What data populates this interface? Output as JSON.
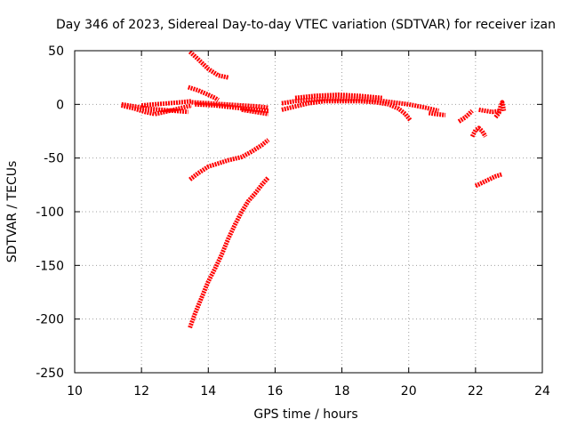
{
  "chart_data": {
    "type": "scatter",
    "title": "Day 346 of 2023, Sidereal Day-to-day VTEC variation (SDTVAR) for receiver izan",
    "xlabel": "GPS time / hours",
    "ylabel": "SDTVAR / TECUs",
    "xlim": [
      10,
      24
    ],
    "ylim": [
      -250,
      50
    ],
    "xticks": [
      "10",
      "12",
      "14",
      "16",
      "18",
      "20",
      "22",
      "24"
    ],
    "yticks": [
      "50",
      "0",
      "-50",
      "-100",
      "-150",
      "-200",
      "-250"
    ],
    "grid": true,
    "marker_color": "#ff0000",
    "series": [
      {
        "points": [
          [
            13.45,
            49
          ],
          [
            13.7,
            42
          ],
          [
            14.0,
            33
          ],
          [
            14.3,
            27
          ],
          [
            14.6,
            25
          ]
        ]
      },
      {
        "points": [
          [
            13.4,
            16
          ],
          [
            13.7,
            13
          ],
          [
            14.0,
            9
          ],
          [
            14.2,
            6
          ],
          [
            14.3,
            4
          ]
        ]
      },
      {
        "points": [
          [
            11.4,
            0
          ],
          [
            11.8,
            -2
          ],
          [
            12.2,
            -4
          ],
          [
            12.6,
            -5
          ],
          [
            13.0,
            -6
          ],
          [
            13.4,
            -7
          ]
        ]
      },
      {
        "points": [
          [
            11.4,
            -1
          ],
          [
            11.8,
            -4
          ],
          [
            12.1,
            -7
          ],
          [
            12.4,
            -9
          ],
          [
            12.7,
            -7
          ],
          [
            13.1,
            -4
          ],
          [
            13.5,
            -1
          ]
        ]
      },
      {
        "points": [
          [
            12.0,
            -1
          ],
          [
            12.4,
            0
          ],
          [
            12.8,
            1
          ],
          [
            13.2,
            2
          ],
          [
            13.5,
            3
          ]
        ]
      },
      {
        "points": [
          [
            13.5,
            2
          ],
          [
            14.0,
            1
          ],
          [
            14.5,
            0
          ],
          [
            15.0,
            -1
          ],
          [
            15.5,
            -2
          ],
          [
            15.8,
            -3
          ]
        ]
      },
      {
        "points": [
          [
            13.6,
            0
          ],
          [
            14.2,
            -1
          ],
          [
            14.8,
            -3
          ],
          [
            15.4,
            -5
          ],
          [
            15.8,
            -6
          ]
        ]
      },
      {
        "points": [
          [
            15.0,
            -5
          ],
          [
            15.4,
            -7
          ],
          [
            15.8,
            -9
          ]
        ]
      },
      {
        "points": [
          [
            16.2,
            1
          ],
          [
            16.6,
            3
          ],
          [
            17.0,
            4
          ],
          [
            17.5,
            5
          ],
          [
            18.0,
            5
          ],
          [
            18.5,
            5
          ],
          [
            19.0,
            4
          ],
          [
            19.5,
            2
          ],
          [
            20.0,
            0
          ],
          [
            20.5,
            -3
          ],
          [
            20.9,
            -6
          ]
        ]
      },
      {
        "points": [
          [
            16.2,
            -5
          ],
          [
            16.6,
            -2
          ],
          [
            17.0,
            1
          ],
          [
            17.5,
            3
          ],
          [
            18.0,
            3
          ],
          [
            18.5,
            3
          ],
          [
            19.0,
            2
          ],
          [
            19.4,
            0
          ],
          [
            19.7,
            -4
          ],
          [
            19.9,
            -9
          ],
          [
            20.05,
            -15
          ]
        ]
      },
      {
        "points": [
          [
            16.6,
            6
          ],
          [
            17.2,
            8
          ],
          [
            17.9,
            9
          ],
          [
            18.5,
            8
          ],
          [
            19.2,
            6
          ]
        ]
      },
      {
        "points": [
          [
            20.6,
            -8
          ],
          [
            20.8,
            -9
          ],
          [
            21.1,
            -10
          ]
        ]
      },
      {
        "points": [
          [
            21.5,
            -16
          ],
          [
            21.7,
            -12
          ],
          [
            21.9,
            -6
          ]
        ]
      },
      {
        "points": [
          [
            21.9,
            -30
          ],
          [
            22.0,
            -24
          ],
          [
            22.1,
            -22
          ],
          [
            22.2,
            -25
          ],
          [
            22.3,
            -30
          ]
        ]
      },
      {
        "points": [
          [
            22.1,
            -5
          ],
          [
            22.3,
            -6
          ],
          [
            22.5,
            -7
          ],
          [
            22.75,
            -6
          ]
        ]
      },
      {
        "points": [
          [
            22.6,
            -12
          ],
          [
            22.7,
            -8
          ],
          [
            22.75,
            -2
          ],
          [
            22.8,
            2
          ],
          [
            22.85,
            -6
          ]
        ]
      },
      {
        "points": [
          [
            22.0,
            -76
          ],
          [
            22.2,
            -73
          ],
          [
            22.4,
            -70
          ],
          [
            22.6,
            -67
          ],
          [
            22.8,
            -65
          ]
        ]
      },
      {
        "points": [
          [
            13.45,
            -70
          ],
          [
            13.7,
            -64
          ],
          [
            14.0,
            -58
          ],
          [
            14.3,
            -55
          ],
          [
            14.6,
            -52
          ],
          [
            15.0,
            -49
          ],
          [
            15.3,
            -44
          ],
          [
            15.6,
            -38
          ],
          [
            15.8,
            -33
          ]
        ]
      },
      {
        "points": [
          [
            13.45,
            -208
          ],
          [
            13.6,
            -195
          ],
          [
            13.8,
            -180
          ],
          [
            14.0,
            -165
          ],
          [
            14.2,
            -153
          ],
          [
            14.4,
            -140
          ],
          [
            14.6,
            -125
          ],
          [
            14.8,
            -112
          ],
          [
            15.0,
            -100
          ],
          [
            15.2,
            -90
          ],
          [
            15.4,
            -83
          ],
          [
            15.6,
            -75
          ],
          [
            15.8,
            -68
          ]
        ]
      }
    ]
  }
}
